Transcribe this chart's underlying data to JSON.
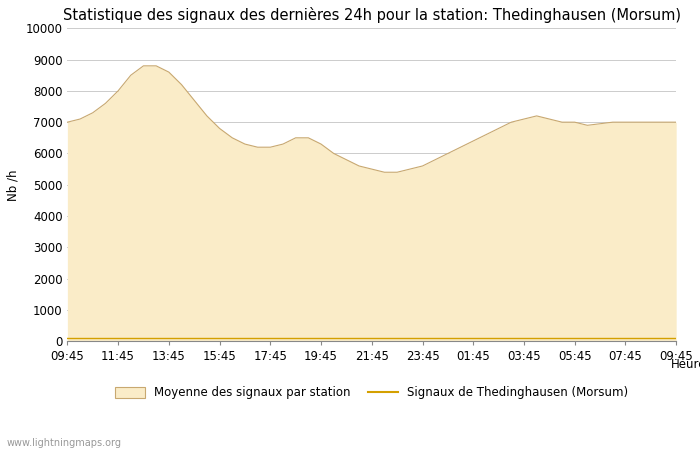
{
  "title": "Statistique des signaux des dernières 24h pour la station: Thedinghausen (Morsum)",
  "xlabel": "Heure",
  "ylabel": "Nb /h",
  "ylim": [
    0,
    10000
  ],
  "yticks": [
    0,
    1000,
    2000,
    3000,
    4000,
    5000,
    6000,
    7000,
    8000,
    9000,
    10000
  ],
  "x_labels": [
    "09:45",
    "11:45",
    "13:45",
    "15:45",
    "17:45",
    "19:45",
    "21:45",
    "23:45",
    "01:45",
    "03:45",
    "05:45",
    "07:45",
    "09:45"
  ],
  "fill_color": "#FAECC8",
  "fill_edge_color": "#C8A870",
  "line_color": "#D4A000",
  "watermark": "www.lightningmaps.org",
  "legend_fill_label": "Moyenne des signaux par station",
  "legend_line_label": "Signaux de Thedinghausen (Morsum)",
  "avg_values": [
    7000,
    7100,
    7300,
    7600,
    8000,
    8500,
    8800,
    8800,
    8600,
    8200,
    7700,
    7200,
    6800,
    6500,
    6300,
    6200,
    6200,
    6300,
    6500,
    6500,
    6300,
    6000,
    5800,
    5600,
    5500,
    5400,
    5400,
    5500,
    5600,
    5800,
    6000,
    6200,
    6400,
    6600,
    6800,
    7000,
    7100,
    7200,
    7100,
    7000,
    7000,
    6900,
    6950,
    7000,
    7000,
    7000,
    7000,
    7000,
    7000
  ],
  "station_values": [
    100,
    100,
    100,
    100,
    100,
    100,
    100,
    100,
    100,
    100,
    100,
    100,
    100,
    100,
    100,
    100,
    100,
    100,
    100,
    100,
    100,
    100,
    100,
    100,
    100,
    100,
    100,
    100,
    100,
    100,
    100,
    100,
    100,
    100,
    100,
    100,
    100,
    100,
    100,
    100,
    100,
    100,
    100,
    100,
    100,
    100,
    100,
    100,
    100
  ],
  "background_color": "#ffffff",
  "grid_color": "#cccccc",
  "title_fontsize": 10.5,
  "axis_fontsize": 8.5
}
